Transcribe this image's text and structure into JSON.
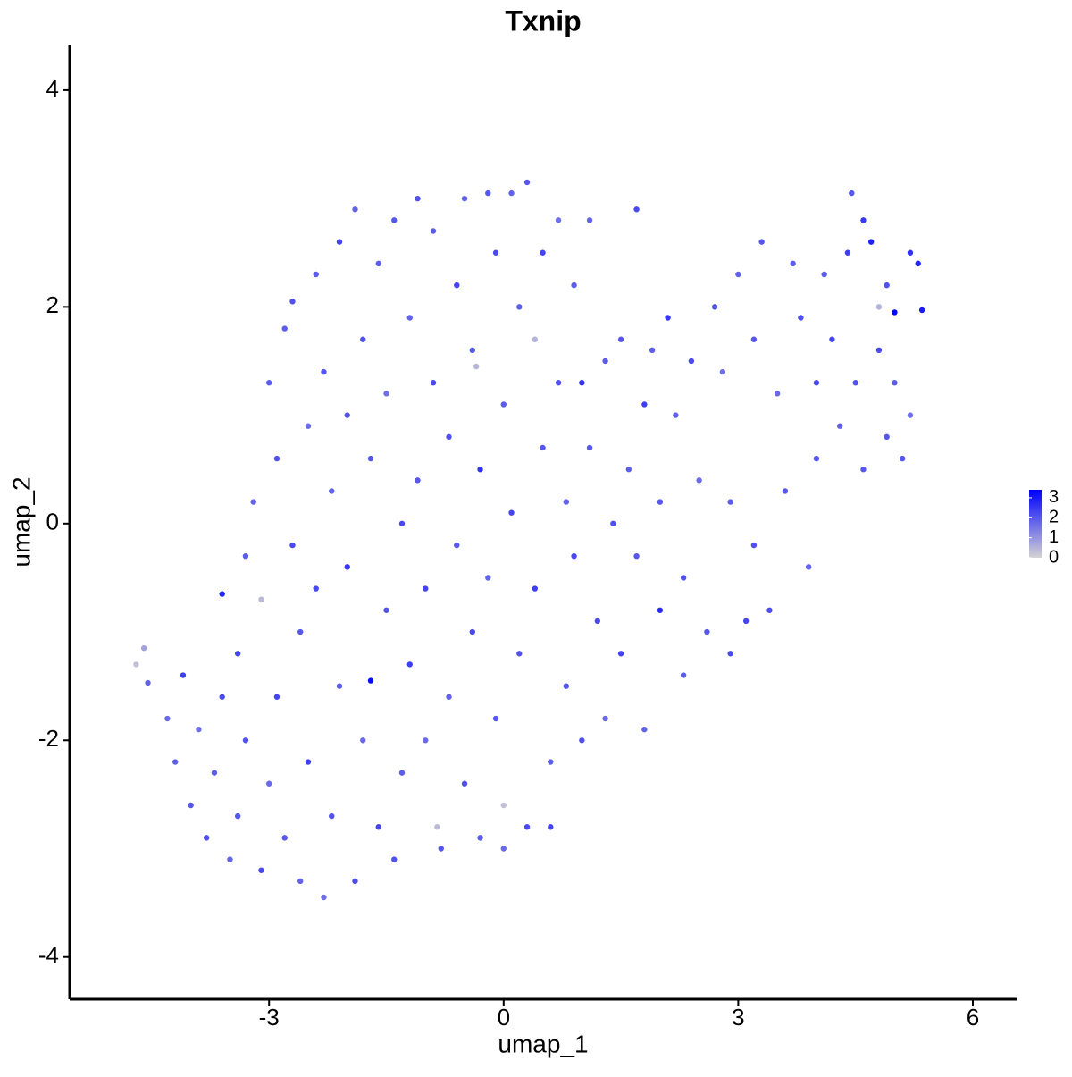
{
  "chart_data": {
    "type": "scatter",
    "title": "Txnip",
    "x_label": "umap_1",
    "y_label": "umap_2",
    "xlim": [
      -5.55,
      6.56
    ],
    "ylim": [
      -4.39,
      4.42
    ],
    "xticks": [
      -3,
      0,
      3,
      6
    ],
    "yticks": [
      -4,
      -2,
      0,
      2,
      4
    ],
    "color_low": "#d3d3d3",
    "color_high": "#0000ff",
    "color_range": [
      0,
      3.4
    ],
    "color_ticks": [
      0,
      1,
      2,
      3
    ],
    "x": [
      -4.7,
      -4.6,
      -4.55,
      -4.3,
      -4.2,
      -4.1,
      -4.0,
      -3.9,
      -3.8,
      -3.7,
      -3.6,
      -3.6,
      -3.5,
      -3.4,
      -3.4,
      -3.3,
      -3.3,
      -3.2,
      -3.1,
      -3.1,
      -3.0,
      -3.0,
      -2.9,
      -2.9,
      -2.8,
      -2.8,
      -2.7,
      -2.7,
      -2.6,
      -2.6,
      -2.5,
      -2.5,
      -2.4,
      -2.4,
      -2.3,
      -2.3,
      -2.2,
      -2.2,
      -2.1,
      -2.1,
      -2.0,
      -2.0,
      -1.9,
      -1.9,
      -1.8,
      -1.8,
      -1.7,
      -1.7,
      -1.6,
      -1.6,
      -1.5,
      -1.5,
      -1.4,
      -1.4,
      -1.3,
      -1.3,
      -1.2,
      -1.2,
      -1.1,
      -1.1,
      -1.0,
      -1.0,
      -0.9,
      -0.9,
      -0.85,
      -0.8,
      -0.7,
      -0.7,
      -0.6,
      -0.6,
      -0.5,
      -0.5,
      -0.4,
      -0.4,
      -0.35,
      -0.3,
      -0.3,
      -0.2,
      -0.2,
      -0.1,
      -0.1,
      0.0,
      0.0,
      0.0,
      0.1,
      0.1,
      0.2,
      0.2,
      0.3,
      0.3,
      0.4,
      0.4,
      0.5,
      0.5,
      0.6,
      0.6,
      0.7,
      0.7,
      0.8,
      0.8,
      0.9,
      0.9,
      1.0,
      1.0,
      1.1,
      1.1,
      1.2,
      1.3,
      1.3,
      1.4,
      1.5,
      1.5,
      1.6,
      1.7,
      1.7,
      1.8,
      1.8,
      1.9,
      2.0,
      2.0,
      2.1,
      2.2,
      2.3,
      2.3,
      2.4,
      2.5,
      2.6,
      2.7,
      2.8,
      2.9,
      2.9,
      3.0,
      3.1,
      3.2,
      3.2,
      3.3,
      3.4,
      3.5,
      3.6,
      3.7,
      3.8,
      3.9,
      4.0,
      4.0,
      4.1,
      4.2,
      4.3,
      4.4,
      4.45,
      4.5,
      4.6,
      4.6,
      4.7,
      4.8,
      4.8,
      4.9,
      4.9,
      5.0,
      5.0,
      5.1,
      5.2,
      5.2,
      5.3,
      5.35
    ],
    "y": [
      -1.3,
      -1.15,
      -1.47,
      -1.8,
      -2.2,
      -1.4,
      -2.6,
      -1.9,
      -2.9,
      -2.3,
      -1.6,
      -0.65,
      -3.1,
      -2.7,
      -1.2,
      -0.3,
      -2.0,
      0.2,
      -3.2,
      -0.7,
      1.3,
      -2.4,
      0.6,
      -1.6,
      1.8,
      -2.9,
      -0.2,
      2.05,
      -3.3,
      -1.0,
      0.9,
      -2.2,
      2.3,
      -0.6,
      -3.45,
      1.4,
      -2.7,
      0.3,
      2.6,
      -1.5,
      -0.4,
      1.0,
      2.9,
      -3.3,
      -2.0,
      1.7,
      -1.45,
      0.6,
      2.4,
      -2.8,
      -0.8,
      1.2,
      2.8,
      -3.1,
      0.0,
      -2.3,
      1.9,
      -1.3,
      3.0,
      0.4,
      -0.6,
      -2.0,
      2.7,
      1.3,
      -2.8,
      -3.0,
      0.8,
      -1.6,
      2.2,
      -0.2,
      3.0,
      -2.4,
      1.6,
      -1.0,
      1.45,
      0.5,
      -2.9,
      3.05,
      -0.5,
      2.5,
      -1.8,
      1.1,
      -2.6,
      -3.0,
      3.05,
      0.1,
      -1.2,
      2.0,
      3.15,
      -2.8,
      1.7,
      -0.6,
      2.5,
      0.7,
      -2.2,
      -2.8,
      1.3,
      2.8,
      -1.5,
      0.2,
      2.2,
      -0.3,
      1.3,
      -2.0,
      2.8,
      0.7,
      -0.9,
      1.5,
      -1.8,
      0.0,
      1.7,
      -1.2,
      0.5,
      2.9,
      -0.3,
      1.1,
      -1.9,
      1.6,
      0.2,
      -0.8,
      1.9,
      1.0,
      -0.5,
      -1.4,
      1.5,
      0.4,
      -1.0,
      2.0,
      1.4,
      -1.2,
      0.2,
      2.3,
      -0.9,
      1.7,
      -0.2,
      2.6,
      -0.8,
      1.2,
      0.3,
      2.4,
      1.9,
      -0.4,
      1.3,
      0.6,
      2.3,
      1.7,
      0.9,
      2.5,
      3.05,
      1.3,
      2.8,
      0.5,
      2.6,
      2.0,
      1.6,
      0.8,
      2.2,
      1.95,
      1.3,
      0.6,
      2.5,
      1.0,
      2.4,
      1.97
    ],
    "values": [
      0.3,
      0.8,
      1.8,
      1.7,
      1.9,
      2.4,
      2.0,
      1.6,
      2.1,
      1.9,
      2.2,
      2.8,
      1.8,
      2.0,
      2.3,
      1.9,
      2.1,
      1.8,
      2.2,
      0.4,
      1.9,
      1.7,
      2.1,
      2.3,
      1.9,
      2.0,
      2.2,
      2.1,
      1.8,
      2.0,
      1.7,
      2.4,
      1.9,
      2.2,
      1.6,
      2.0,
      2.1,
      1.8,
      2.3,
      1.9,
      2.5,
      2.0,
      1.8,
      2.2,
      1.7,
      2.1,
      3.2,
      2.0,
      1.9,
      2.3,
      2.1,
      1.6,
      2.0,
      2.1,
      2.2,
      1.9,
      1.8,
      2.4,
      2.1,
      2.0,
      2.3,
      1.7,
      1.9,
      2.2,
      0.4,
      2.0,
      2.1,
      1.8,
      2.3,
      1.9,
      1.8,
      2.1,
      2.0,
      2.2,
      0.5,
      2.6,
      1.9,
      2.0,
      1.8,
      2.2,
      2.0,
      1.9,
      0.3,
      1.7,
      1.8,
      2.3,
      2.1,
      1.9,
      2.0,
      2.2,
      0.5,
      2.4,
      2.3,
      2.0,
      1.9,
      2.3,
      2.1,
      1.6,
      2.0,
      1.8,
      1.9,
      2.2,
      2.6,
      2.1,
      1.8,
      2.0,
      2.2,
      1.9,
      1.7,
      2.1,
      2.0,
      2.3,
      1.9,
      2.2,
      2.0,
      2.4,
      1.8,
      1.9,
      2.0,
      2.7,
      2.5,
      1.8,
      2.1,
      1.9,
      2.2,
      1.7,
      2.0,
      2.1,
      1.6,
      2.2,
      1.9,
      1.8,
      2.3,
      2.0,
      2.1,
      2.0,
      2.2,
      1.7,
      2.0,
      1.9,
      2.1,
      1.8,
      2.2,
      2.0,
      1.9,
      2.3,
      1.8,
      2.4,
      2.0,
      2.1,
      2.5,
      2.0,
      2.9,
      0.5,
      2.2,
      2.0,
      2.1,
      3.3,
      1.9,
      2.0,
      2.6,
      1.6,
      2.8,
      3.0
    ]
  }
}
